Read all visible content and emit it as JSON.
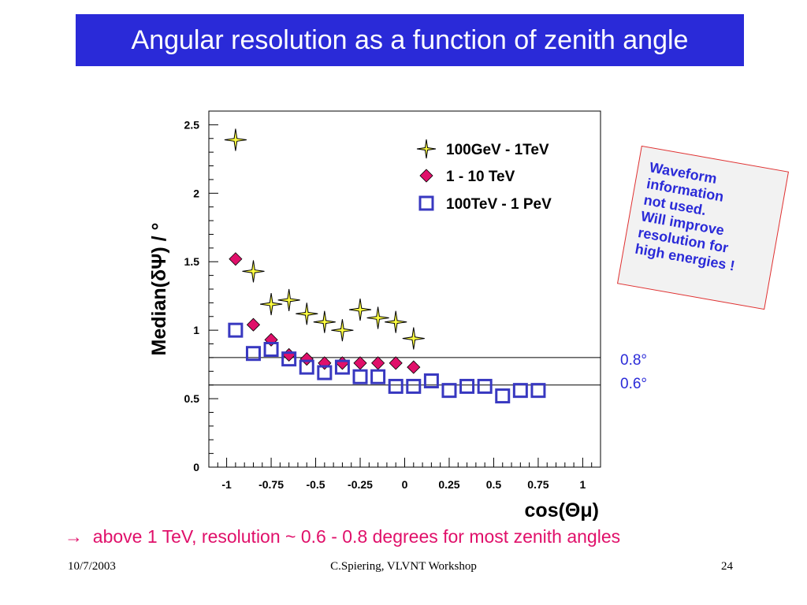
{
  "slide": {
    "title": "Angular resolution as a function of zenith angle",
    "conclusion_arrow": "→",
    "conclusion": "above 1 TeV, resolution ~ 0.6 - 0.8 degrees for most zenith angles",
    "note_lines": [
      "Waveform",
      "information",
      "not used.",
      "Will improve",
      "resolution for",
      "high energies !"
    ],
    "ref_line_labels": [
      "0.8°",
      "0.6°"
    ],
    "footer": {
      "date": "10/7/2003",
      "event": "C.Spiering, VLVNT Workshop",
      "page": "24"
    }
  },
  "colors": {
    "title_bg": "#2a2ad8",
    "star": "#ffff40",
    "diamond": "#e0106a",
    "square": "#3838c0",
    "conclusion": "#e0106a"
  },
  "chart_data": {
    "type": "scatter",
    "ylabel": "Median(δΨ) / °",
    "xlabel": "cos(Θμ)",
    "xlim": [
      -1.1,
      1.1
    ],
    "ylim": [
      0,
      2.6
    ],
    "x_ticks": [
      -1,
      -0.75,
      -0.5,
      -0.25,
      0,
      0.25,
      0.5,
      0.75,
      1
    ],
    "x_tick_labels": [
      "-1",
      "-0.75",
      "-0.5",
      "-0.25",
      "0",
      "0.25",
      "0.5",
      "0.75",
      "1"
    ],
    "y_ticks": [
      0,
      0.5,
      1,
      1.5,
      2,
      2.5
    ],
    "y_tick_labels": [
      "0",
      "0.5",
      "1",
      "1.5",
      "2",
      "2.5"
    ],
    "ref_lines": [
      0.8,
      0.6
    ],
    "legend_position": "top-right",
    "series": [
      {
        "name": "100GeV - 1TeV",
        "marker": "star",
        "x": [
          -0.95,
          -0.85,
          -0.75,
          -0.65,
          -0.55,
          -0.45,
          -0.35,
          -0.25,
          -0.15,
          -0.05,
          0.05
        ],
        "y": [
          2.39,
          1.43,
          1.19,
          1.22,
          1.12,
          1.06,
          1.0,
          1.15,
          1.09,
          1.06,
          0.94
        ]
      },
      {
        "name": "1 - 10 TeV",
        "marker": "diamond",
        "x": [
          -0.95,
          -0.85,
          -0.75,
          -0.65,
          -0.55,
          -0.45,
          -0.35,
          -0.25,
          -0.15,
          -0.05,
          0.05
        ],
        "y": [
          1.52,
          1.04,
          0.93,
          0.82,
          0.79,
          0.76,
          0.76,
          0.76,
          0.76,
          0.76,
          0.73
        ]
      },
      {
        "name": "100TeV - 1 PeV",
        "marker": "square",
        "x": [
          -0.95,
          -0.85,
          -0.75,
          -0.65,
          -0.55,
          -0.45,
          -0.35,
          -0.25,
          -0.15,
          -0.05,
          0.05,
          0.15,
          0.25,
          0.35,
          0.45,
          0.55,
          0.65,
          0.75
        ],
        "y": [
          1.0,
          0.83,
          0.86,
          0.79,
          0.73,
          0.69,
          0.73,
          0.66,
          0.66,
          0.59,
          0.59,
          0.63,
          0.56,
          0.59,
          0.59,
          0.52,
          0.56,
          0.56
        ]
      }
    ]
  }
}
